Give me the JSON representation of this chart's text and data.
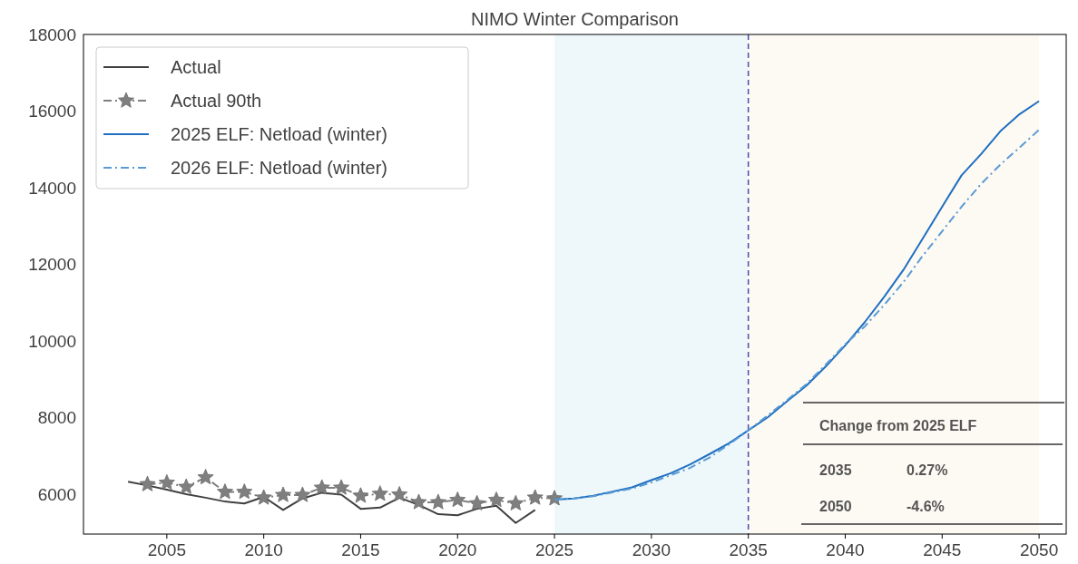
{
  "chart_data": {
    "type": "line",
    "title": "NIMO Winter Comparison",
    "xlim": [
      2000.7,
      2051.4
    ],
    "xticks": [
      2005,
      2010,
      2015,
      2020,
      2025,
      2030,
      2035,
      2040,
      2045,
      2050
    ],
    "ylim": [
      4950,
      18000
    ],
    "yticks": [
      6000,
      8000,
      10000,
      12000,
      14000,
      16000,
      18000
    ],
    "grid": false,
    "legend": "top left",
    "series": [
      {
        "name": "Actual",
        "color": "#404040",
        "line_style": "solid",
        "marker": "none",
        "x": [
          2003,
          2004,
          2005,
          2006,
          2007,
          2008,
          2009,
          2010,
          2011,
          2012,
          2013,
          2014,
          2015,
          2016,
          2017,
          2018,
          2019,
          2020,
          2021,
          2022,
          2023,
          2024
        ],
        "values": [
          6320,
          6220,
          6110,
          5990,
          5900,
          5800,
          5750,
          5920,
          5580,
          5880,
          6030,
          5980,
          5610,
          5640,
          5900,
          5710,
          5470,
          5440,
          5610,
          5690,
          5240,
          5580
        ]
      },
      {
        "name": "Actual 90th",
        "color": "#7f7f7f",
        "line_style": "dashed",
        "marker": "star",
        "x": [
          2004,
          2005,
          2006,
          2007,
          2008,
          2009,
          2010,
          2011,
          2012,
          2013,
          2014,
          2015,
          2016,
          2017,
          2018,
          2019,
          2020,
          2021,
          2022,
          2023,
          2024,
          2025
        ],
        "values": [
          6250,
          6290,
          6180,
          6430,
          6050,
          6050,
          5900,
          5970,
          5970,
          6160,
          6160,
          5950,
          6000,
          5980,
          5780,
          5780,
          5840,
          5750,
          5840,
          5750,
          5900,
          5880
        ]
      },
      {
        "name": "2025 ELF: Netload (winter)",
        "color": "#1f6fc0",
        "line_style": "solid",
        "marker": "none",
        "x": [
          2025,
          2026,
          2027,
          2028,
          2029,
          2030,
          2031,
          2032,
          2033,
          2034,
          2035,
          2036,
          2037,
          2038,
          2039,
          2040,
          2041,
          2042,
          2043,
          2044,
          2045,
          2046,
          2047,
          2048,
          2049,
          2050
        ],
        "values": [
          5850,
          5880,
          5950,
          6060,
          6170,
          6360,
          6540,
          6770,
          7040,
          7320,
          7660,
          8000,
          8420,
          8830,
          9330,
          9880,
          10480,
          11140,
          11850,
          12670,
          13500,
          14320,
          14870,
          15470,
          15920,
          16260
        ]
      },
      {
        "name": "2026 ELF: Netload (winter)",
        "color": "#5b9bd5",
        "line_style": "dashed",
        "marker": "none",
        "x": [
          2025,
          2026,
          2027,
          2028,
          2029,
          2030,
          2031,
          2032,
          2033,
          2034,
          2035,
          2036,
          2037,
          2038,
          2039,
          2040,
          2041,
          2042,
          2043,
          2044,
          2045,
          2046,
          2047,
          2048,
          2049,
          2050
        ],
        "values": [
          5850,
          5880,
          5940,
          6040,
          6140,
          6300,
          6490,
          6680,
          6950,
          7290,
          7660,
          8050,
          8450,
          8870,
          9380,
          9910,
          10370,
          10930,
          11530,
          12220,
          12860,
          13500,
          14090,
          14600,
          15050,
          15510
        ]
      }
    ],
    "bands": [
      {
        "axis": "x",
        "from": 2025,
        "to": 2035,
        "color": "#eef8fb"
      },
      {
        "axis": "x",
        "from": 2035,
        "to": 2050,
        "color": "#fdfaf4"
      }
    ],
    "ref_lines": [
      {
        "axis": "x",
        "value": 2035,
        "color": "#4a4aa8",
        "line_style": "dashed"
      }
    ],
    "annotations": [
      "Change from 2025 ELF",
      "2035",
      "0.27%",
      "2050",
      "-4.6%"
    ]
  }
}
